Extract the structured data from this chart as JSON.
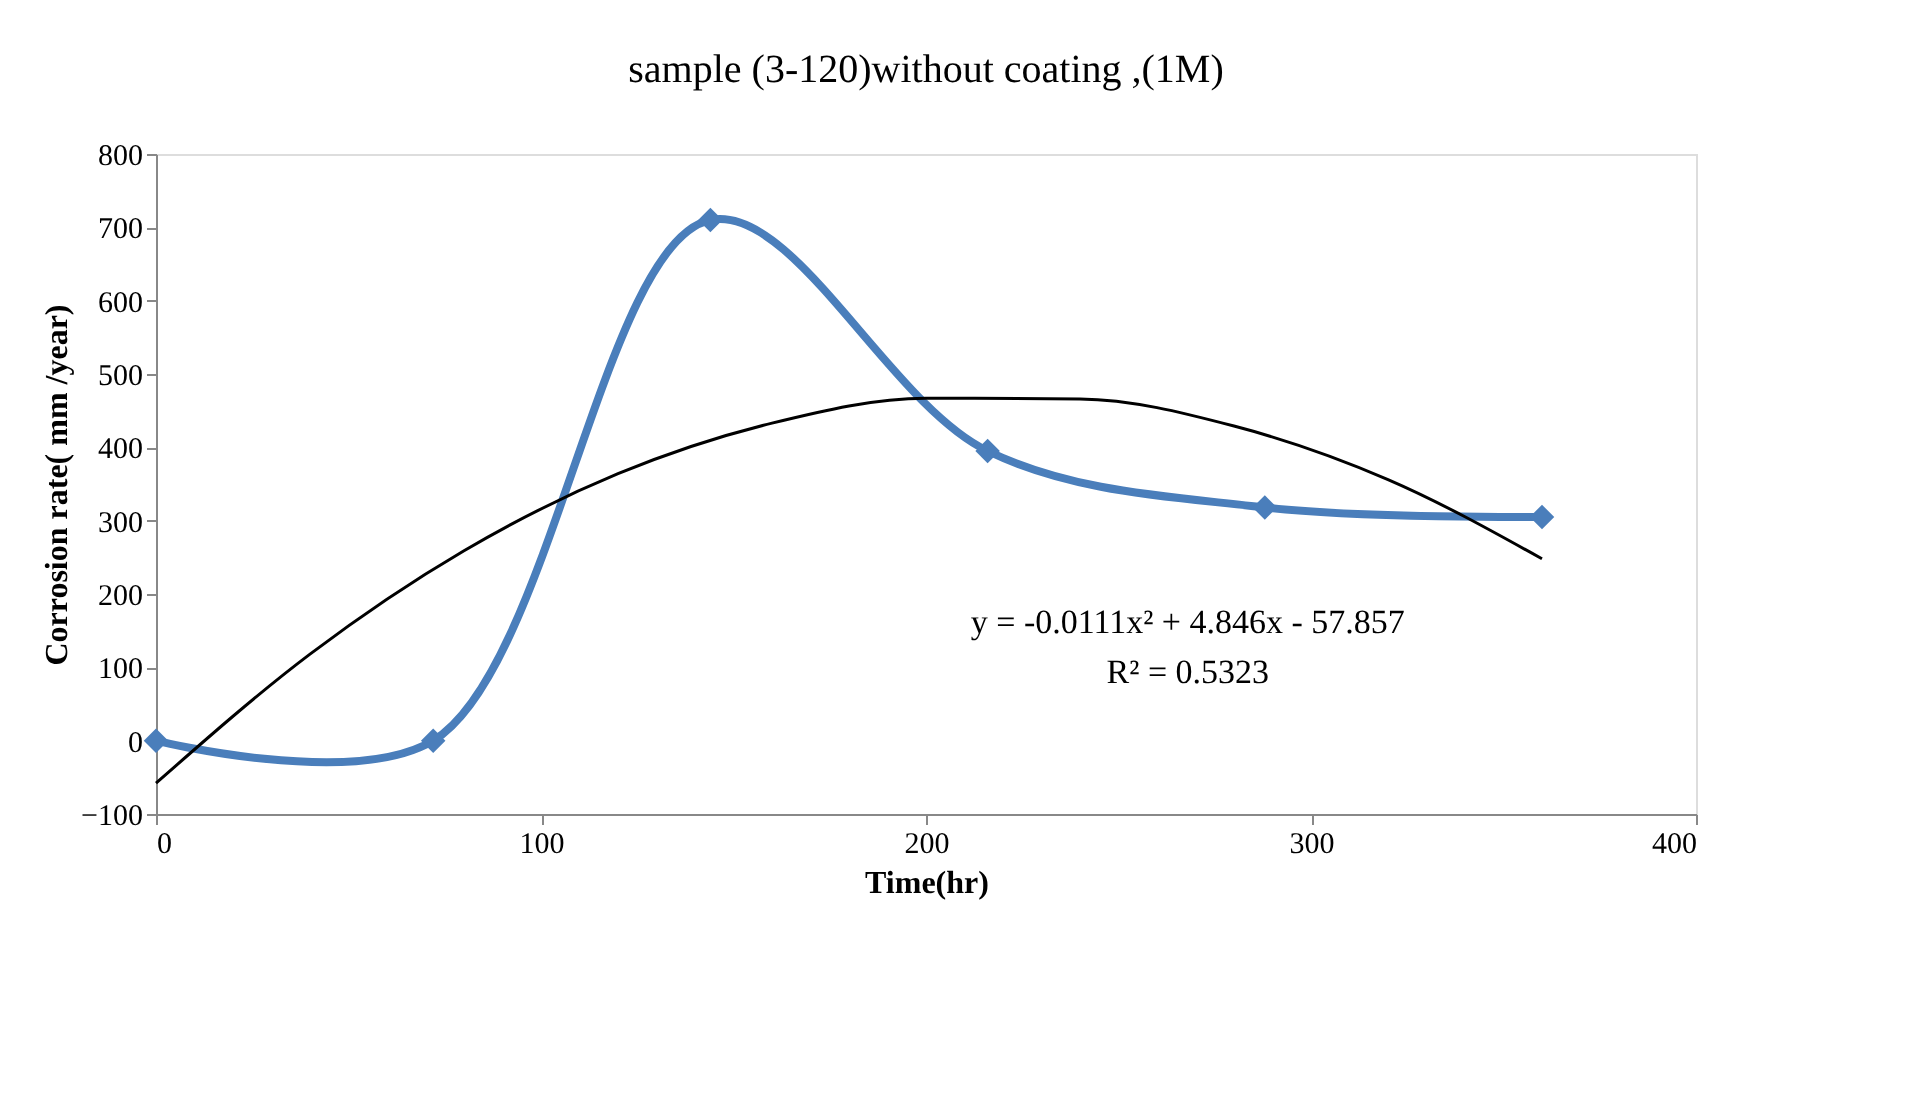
{
  "chart_data": {
    "type": "line",
    "title": "sample (3-120)without coating ,(1M)",
    "xlabel": "Time(hr)",
    "ylabel": "Corrosion rate( mm /year)",
    "x": [
      0,
      72,
      144,
      216,
      288,
      360
    ],
    "series": [
      {
        "color": "#4a7ebb",
        "values": [
          0,
          0,
          710,
          395,
          318,
          305
        ],
        "marker": "diamond",
        "line_style": "solid"
      },
      {
        "type": "line",
        "color": "#000000",
        "x": [
          0,
          40,
          80,
          120,
          160,
          200,
          240,
          280,
          320,
          360
        ],
        "values": [
          -58,
          118,
          259,
          364,
          433,
          467,
          466,
          429,
          356,
          248
        ],
        "marker": "none",
        "line_style": "solid"
      }
    ],
    "xlim": [
      0,
      400
    ],
    "xticks": [
      0,
      100,
      200,
      300,
      400
    ],
    "ylim": [
      -100,
      800
    ],
    "yticks": [
      -100,
      0,
      100,
      200,
      300,
      400,
      500,
      600,
      700,
      800
    ],
    "grid": false,
    "legend": false,
    "annotations": [
      "y = -0.0111x² + 4.846x - 57.857",
      "R² = 0.5323"
    ]
  }
}
